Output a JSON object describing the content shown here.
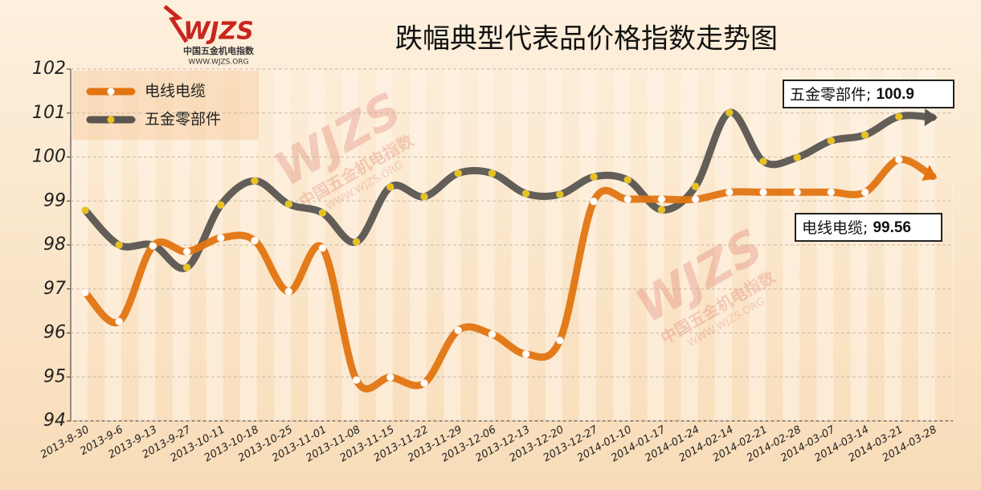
{
  "chart_data": {
    "type": "line",
    "title": "跌幅典型代表品价格指数走势图",
    "logo": {
      "mark": "WJZS",
      "name": "中国五金机电指数",
      "url": "WWW.WJZS.ORG"
    },
    "categories": [
      "2013-8-30",
      "2013-9-6",
      "2013-9-13",
      "2013-9-27",
      "2013-10-11",
      "2013-10-18",
      "2013-10-25",
      "2013-11-01",
      "2013-11-08",
      "2013-11-15",
      "2013-11-22",
      "2013-11-29",
      "2013-12-06",
      "2013-12-13",
      "2013-12-20",
      "2013-12-27",
      "2014-01-10",
      "2014-01-17",
      "2014-01-24",
      "2014-02-14",
      "2014-02-21",
      "2014-02-28",
      "2014-03-07",
      "2014-03-14",
      "2014-03-21",
      "2014-03-28"
    ],
    "series": [
      {
        "name": "电线电缆",
        "color": "#e27512",
        "marker": "#ffffff",
        "values": [
          96.92,
          96.26,
          97.98,
          97.85,
          98.16,
          98.1,
          96.94,
          97.93,
          94.93,
          94.99,
          94.86,
          96.06,
          95.97,
          95.52,
          95.83,
          98.99,
          99.04,
          99.04,
          99.04,
          99.2,
          99.2,
          99.2,
          99.2,
          99.2,
          99.94,
          99.56
        ]
      },
      {
        "name": "五金零部件",
        "color": "#5a5550",
        "marker": "#e8c21a",
        "values": [
          98.79,
          98.0,
          98.0,
          97.49,
          98.91,
          99.46,
          98.93,
          98.73,
          98.07,
          99.32,
          99.1,
          99.63,
          99.63,
          99.17,
          99.15,
          99.55,
          99.48,
          98.8,
          99.33,
          101.01,
          99.9,
          99.99,
          100.37,
          100.5,
          100.92,
          100.9
        ]
      }
    ],
    "annotations": [
      {
        "text": "五金零部件; ",
        "value": 100.9
      },
      {
        "text": "电线电缆; ",
        "value": 99.56
      }
    ],
    "ylim": [
      94,
      102
    ],
    "yticks": [
      94,
      95,
      96,
      97,
      98,
      99,
      100,
      101,
      102
    ],
    "grid": true
  }
}
